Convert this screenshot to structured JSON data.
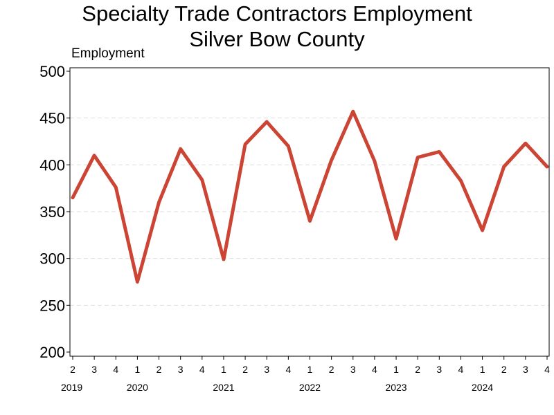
{
  "chart_data": {
    "type": "line",
    "title": [
      "Specialty Trade Contractors Employment",
      "Silver Bow County"
    ],
    "ylabel": "Employment",
    "xlabel": "",
    "ylim": [
      200,
      500
    ],
    "yticks": [
      200,
      250,
      300,
      350,
      400,
      450,
      500
    ],
    "grid": "horizontal dashed",
    "color": "#cc4433",
    "x": [
      "2019 Q2",
      "2019 Q3",
      "2019 Q4",
      "2020 Q1",
      "2020 Q2",
      "2020 Q3",
      "2020 Q4",
      "2021 Q1",
      "2021 Q2",
      "2021 Q3",
      "2021 Q4",
      "2022 Q1",
      "2022 Q2",
      "2022 Q3",
      "2022 Q4",
      "2023 Q1",
      "2023 Q2",
      "2023 Q3",
      "2023 Q4",
      "2024 Q1",
      "2024 Q2",
      "2024 Q3",
      "2024 Q4"
    ],
    "quarter_labels": [
      "2",
      "3",
      "4",
      "1",
      "2",
      "3",
      "4",
      "1",
      "2",
      "3",
      "4",
      "1",
      "2",
      "3",
      "4",
      "1",
      "2",
      "3",
      "4",
      "1",
      "2",
      "3",
      "4"
    ],
    "year_labels": [
      "2019",
      "2020",
      "2021",
      "2022",
      "2023",
      "2024"
    ],
    "year_label_quarter_index": [
      0,
      3,
      7,
      11,
      15,
      19
    ],
    "values": [
      365,
      410,
      376,
      275,
      360,
      417,
      384,
      299,
      422,
      446,
      420,
      340,
      405,
      457,
      404,
      321,
      408,
      414,
      383,
      330,
      398,
      423,
      398
    ]
  }
}
